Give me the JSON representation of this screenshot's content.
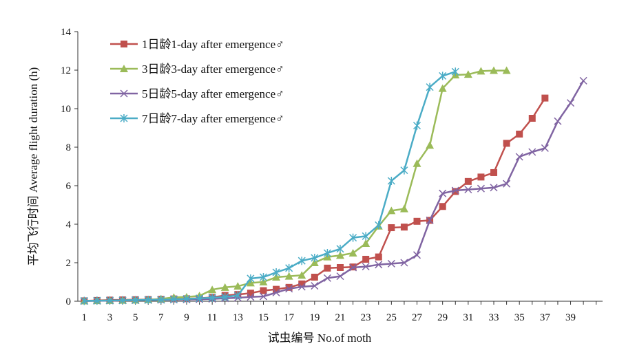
{
  "chart_data": {
    "type": "line",
    "xlabel": "试虫编号  No.of moth",
    "ylabel": "平均飞行时间   Average flight duration (h)",
    "xlim": [
      0.5,
      41.5
    ],
    "ylim": [
      0,
      14
    ],
    "x_ticks": [
      "1",
      "3",
      "5",
      "7",
      "9",
      "11",
      "13",
      "15",
      "17",
      "19",
      "21",
      "23",
      "25",
      "27",
      "29",
      "31",
      "33",
      "35",
      "37",
      "39"
    ],
    "y_ticks": [
      "0",
      "2",
      "4",
      "6",
      "8",
      "10",
      "12",
      "14"
    ],
    "legend_position": "top-left",
    "grid": false,
    "series": [
      {
        "name": "1日龄1-day after emergence♂",
        "color": "#c0504d",
        "marker": "square",
        "x": [
          1,
          2,
          3,
          4,
          5,
          6,
          7,
          8,
          9,
          10,
          11,
          12,
          13,
          14,
          15,
          16,
          17,
          18,
          19,
          20,
          21,
          22,
          23,
          24,
          25,
          26,
          27,
          28,
          29,
          30,
          31,
          32,
          33,
          34,
          35,
          36,
          37
        ],
        "y": [
          0.02,
          0.04,
          0.06,
          0.07,
          0.08,
          0.09,
          0.1,
          0.12,
          0.13,
          0.15,
          0.2,
          0.3,
          0.35,
          0.42,
          0.55,
          0.62,
          0.72,
          0.9,
          1.25,
          1.72,
          1.75,
          1.78,
          2.18,
          2.3,
          3.82,
          3.85,
          4.15,
          4.2,
          4.92,
          5.7,
          6.22,
          6.45,
          6.68,
          8.2,
          8.68,
          9.5,
          10.55
        ]
      },
      {
        "name": "3日龄3-day after emergence♂",
        "color": "#9bbb59",
        "marker": "triangle",
        "x": [
          1,
          2,
          3,
          4,
          5,
          6,
          7,
          8,
          9,
          10,
          11,
          12,
          13,
          14,
          15,
          16,
          17,
          18,
          19,
          20,
          21,
          22,
          23,
          24,
          25,
          26,
          27,
          28,
          29,
          30,
          31,
          32,
          33,
          34
        ],
        "y": [
          0.02,
          0.03,
          0.04,
          0.05,
          0.06,
          0.08,
          0.12,
          0.2,
          0.22,
          0.28,
          0.6,
          0.72,
          0.78,
          0.95,
          1.0,
          1.25,
          1.3,
          1.35,
          2.0,
          2.3,
          2.38,
          2.5,
          3.0,
          3.9,
          4.7,
          4.8,
          7.15,
          8.1,
          11.05,
          11.75,
          11.78,
          11.95,
          11.98,
          11.98
        ]
      },
      {
        "name": "5日龄5-day after emergence♂",
        "color": "#8064a2",
        "marker": "x",
        "x": [
          1,
          2,
          3,
          4,
          5,
          6,
          7,
          8,
          9,
          10,
          11,
          12,
          13,
          14,
          15,
          16,
          17,
          18,
          19,
          20,
          21,
          22,
          23,
          24,
          25,
          26,
          27,
          28,
          29,
          30,
          31,
          32,
          33,
          34,
          35,
          36,
          37,
          38,
          39,
          40
        ],
        "y": [
          0.01,
          0.02,
          0.03,
          0.04,
          0.05,
          0.06,
          0.07,
          0.08,
          0.09,
          0.1,
          0.12,
          0.15,
          0.18,
          0.22,
          0.25,
          0.45,
          0.65,
          0.75,
          0.8,
          1.2,
          1.3,
          1.75,
          1.8,
          1.9,
          1.95,
          2.0,
          2.4,
          4.2,
          5.6,
          5.75,
          5.8,
          5.85,
          5.9,
          6.1,
          7.5,
          7.75,
          7.95,
          9.35,
          10.3,
          11.45
        ]
      },
      {
        "name": "7日龄7-day after emergence♂",
        "color": "#4bacc6",
        "marker": "star",
        "x": [
          1,
          2,
          3,
          4,
          5,
          6,
          7,
          8,
          9,
          10,
          11,
          12,
          13,
          14,
          15,
          16,
          17,
          18,
          19,
          20,
          21,
          22,
          23,
          24,
          25,
          26,
          27,
          28,
          29,
          30
        ],
        "y": [
          0.02,
          0.03,
          0.04,
          0.05,
          0.06,
          0.07,
          0.08,
          0.1,
          0.12,
          0.15,
          0.18,
          0.22,
          0.3,
          1.18,
          1.25,
          1.5,
          1.72,
          2.1,
          2.25,
          2.5,
          2.72,
          3.3,
          3.38,
          3.95,
          6.25,
          6.8,
          9.12,
          11.12,
          11.7,
          11.92
        ]
      }
    ]
  }
}
